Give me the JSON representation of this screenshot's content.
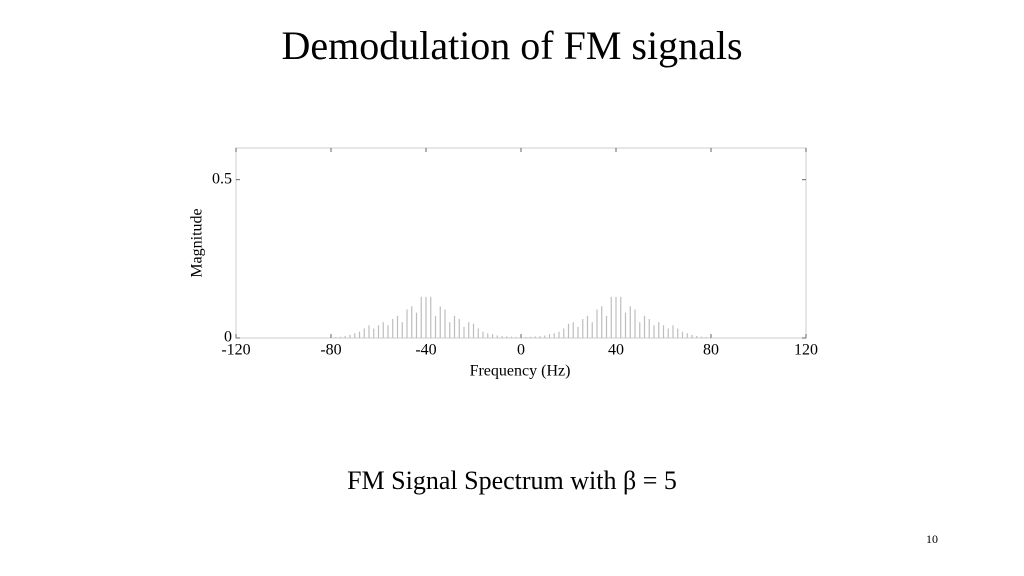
{
  "title": "Demodulation of FM signals",
  "chart_data": {
    "type": "bar",
    "xlabel": "Frequency (Hz)",
    "ylabel": "Magnitude",
    "x": [
      -78,
      -76,
      -74,
      -72,
      -70,
      -68,
      -66,
      -64,
      -62,
      -60,
      -58,
      -56,
      -54,
      -52,
      -50,
      -48,
      -46,
      -44,
      -42,
      -40,
      -38,
      -36,
      -34,
      -32,
      -30,
      -28,
      -26,
      -24,
      -22,
      -20,
      -18,
      -16,
      -14,
      -12,
      -10,
      -8,
      -6,
      -4,
      -2,
      2,
      4,
      6,
      8,
      10,
      12,
      14,
      16,
      18,
      20,
      22,
      24,
      26,
      28,
      30,
      32,
      34,
      36,
      38,
      40,
      42,
      44,
      46,
      48,
      50,
      52,
      54,
      56,
      58,
      60,
      62,
      64,
      66,
      68,
      70,
      72,
      74,
      76,
      78
    ],
    "values": [
      0.003,
      0.004,
      0.006,
      0.01,
      0.015,
      0.02,
      0.03,
      0.04,
      0.03,
      0.04,
      0.05,
      0.04,
      0.06,
      0.07,
      0.05,
      0.09,
      0.1,
      0.08,
      0.13,
      0.13,
      0.13,
      0.07,
      0.1,
      0.09,
      0.05,
      0.07,
      0.06,
      0.035,
      0.05,
      0.045,
      0.03,
      0.02,
      0.015,
      0.012,
      0.008,
      0.006,
      0.005,
      0.004,
      0.003,
      0.003,
      0.004,
      0.005,
      0.006,
      0.008,
      0.012,
      0.015,
      0.02,
      0.03,
      0.045,
      0.05,
      0.035,
      0.06,
      0.07,
      0.05,
      0.09,
      0.1,
      0.07,
      0.13,
      0.13,
      0.13,
      0.08,
      0.1,
      0.09,
      0.05,
      0.07,
      0.06,
      0.04,
      0.05,
      0.04,
      0.03,
      0.04,
      0.03,
      0.02,
      0.015,
      0.01,
      0.006,
      0.004,
      0.003
    ],
    "color": "#bdbdbd",
    "xlim": [
      -120,
      120
    ],
    "xticks": [
      -120,
      -80,
      -40,
      0,
      40,
      80,
      120
    ],
    "ylim": [
      0,
      0.6
    ],
    "yticks": [
      0,
      0.5
    ]
  },
  "caption": "FM Signal Spectrum with β = 5",
  "page_number": "10"
}
